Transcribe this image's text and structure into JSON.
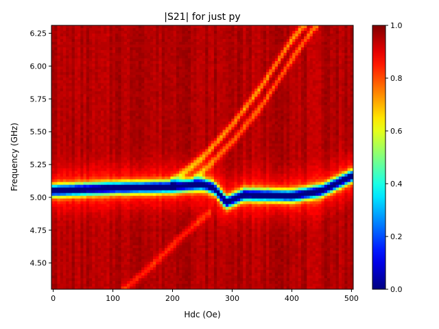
{
  "chart_data": {
    "type": "heatmap",
    "title": "|S21| for just py",
    "xlabel": "Hdc (Oe)",
    "ylabel": "Frequency (GHz)",
    "xlim": [
      -3,
      503
    ],
    "ylim": [
      4.3,
      6.31
    ],
    "x_ticks": [
      0,
      100,
      200,
      300,
      400,
      500
    ],
    "x_tick_labels": [
      "0",
      "100",
      "200",
      "300",
      "400",
      "500"
    ],
    "y_ticks": [
      4.5,
      4.75,
      5.0,
      5.25,
      5.5,
      5.75,
      6.0,
      6.25
    ],
    "y_tick_labels": [
      "4.50",
      "4.75",
      "5.00",
      "5.25",
      "5.50",
      "5.75",
      "6.00",
      "6.25"
    ],
    "colormap": "jet",
    "colorbar": {
      "range": [
        0.0,
        1.0
      ],
      "ticks": [
        0.0,
        0.2,
        0.4,
        0.6,
        0.8,
        1.0
      ],
      "tick_labels": [
        "0.0",
        "0.2",
        "0.4",
        "0.6",
        "0.8",
        "1.0"
      ]
    },
    "background_value": 0.97,
    "features": [
      {
        "name": "main resonance",
        "points": [
          [
            0,
            5.05
          ],
          [
            100,
            5.07
          ],
          [
            200,
            5.08
          ],
          [
            250,
            5.1
          ],
          [
            270,
            5.07
          ],
          [
            290,
            4.96
          ],
          [
            320,
            5.02
          ],
          [
            400,
            5.01
          ],
          [
            450,
            5.05
          ],
          [
            500,
            5.16
          ]
        ],
        "min_value": 0.05
      },
      {
        "name": "upper branch",
        "points": [
          [
            200,
            5.12
          ],
          [
            250,
            5.3
          ],
          [
            300,
            5.55
          ],
          [
            350,
            5.85
          ],
          [
            400,
            6.2
          ],
          [
            420,
            6.31
          ]
        ],
        "min_value": 0.78
      },
      {
        "name": "upper branch 2",
        "points": [
          [
            240,
            5.15
          ],
          [
            300,
            5.42
          ],
          [
            350,
            5.7
          ],
          [
            400,
            6.05
          ],
          [
            440,
            6.31
          ]
        ],
        "min_value": 0.82
      },
      {
        "name": "lower branch",
        "points": [
          [
            120,
            4.3
          ],
          [
            170,
            4.5
          ],
          [
            220,
            4.72
          ],
          [
            260,
            4.88
          ]
        ],
        "min_value": 0.88
      }
    ],
    "grid": false,
    "legend": "none"
  }
}
